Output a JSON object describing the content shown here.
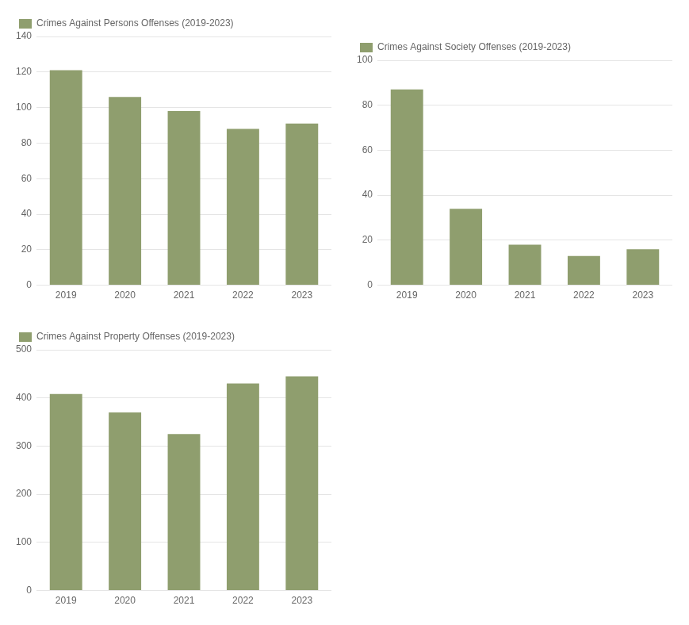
{
  "chart_data": [
    {
      "type": "bar",
      "categories": [
        "2019",
        "2020",
        "2021",
        "2022",
        "2023"
      ],
      "series": [
        {
          "name": "Crimes Against Persons Offenses (2019-2023)",
          "color": "#8f9e6e",
          "values": [
            121,
            106,
            98,
            88,
            91
          ]
        }
      ],
      "ylim": [
        0,
        140
      ],
      "yticks": [
        0,
        20,
        40,
        60,
        80,
        100,
        120,
        140
      ],
      "grid": true,
      "legend": "upper left"
    },
    {
      "type": "bar",
      "categories": [
        "2019",
        "2020",
        "2021",
        "2022",
        "2023"
      ],
      "series": [
        {
          "name": "Crimes Against Society Offenses (2019-2023)",
          "color": "#8f9e6e",
          "values": [
            87,
            34,
            18,
            13,
            16
          ]
        }
      ],
      "ylim": [
        0,
        100
      ],
      "yticks": [
        0,
        20,
        40,
        60,
        80,
        100
      ],
      "grid": true,
      "legend": "upper left"
    },
    {
      "type": "bar",
      "categories": [
        "2019",
        "2020",
        "2021",
        "2022",
        "2023"
      ],
      "series": [
        {
          "name": "Crimes Against Property Offenses (2019-2023)",
          "color": "#8f9e6e",
          "values": [
            408,
            370,
            325,
            430,
            445
          ]
        }
      ],
      "ylim": [
        0,
        500
      ],
      "yticks": [
        0,
        100,
        200,
        300,
        400,
        500
      ],
      "grid": true,
      "legend": "upper left"
    }
  ]
}
